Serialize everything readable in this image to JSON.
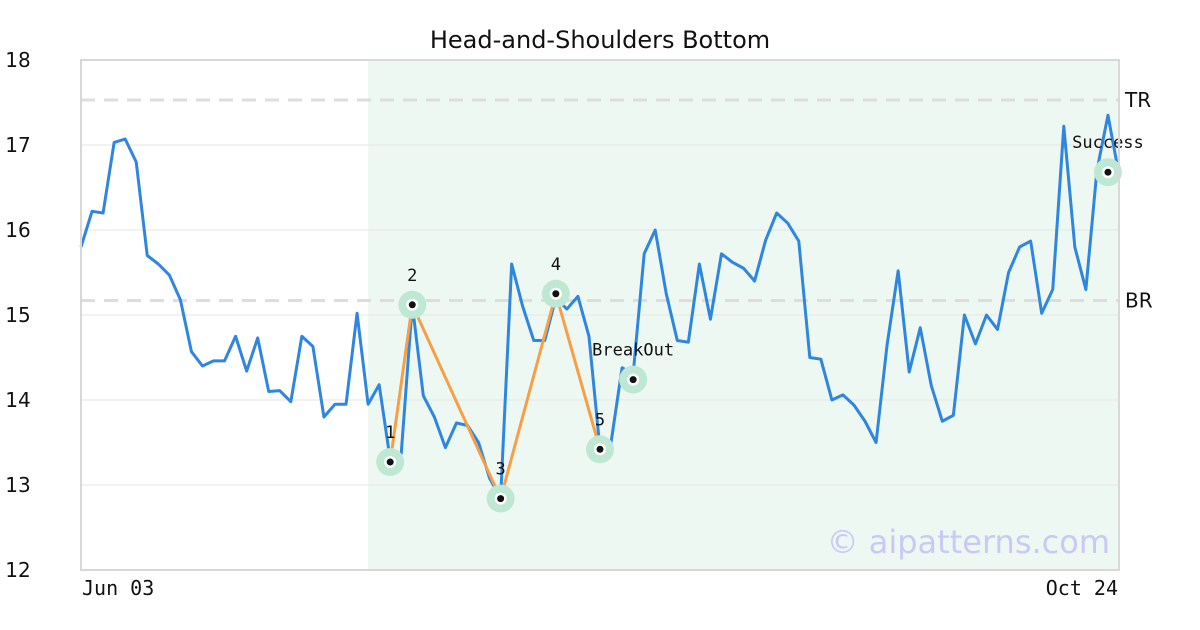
{
  "chart_data": {
    "type": "line",
    "title": "Head-and-Shoulders Bottom",
    "xlabel": "",
    "ylabel": "",
    "ylim": [
      12,
      18
    ],
    "yticks": [
      "12",
      "13",
      "14",
      "15",
      "16",
      "17",
      "18"
    ],
    "x_start_label": "Jun 03",
    "x_end_label": "Oct 24",
    "grid": true,
    "series": [
      {
        "color": "#2e86de",
        "values": [
          15.8,
          16.22,
          16.2,
          17.03,
          17.07,
          16.8,
          15.7,
          15.6,
          15.47,
          15.18,
          14.57,
          14.4,
          14.46,
          14.46,
          14.75,
          14.34,
          14.73,
          14.1,
          14.11,
          13.98,
          14.75,
          14.63,
          13.8,
          13.95,
          13.95,
          15.02,
          13.95,
          14.18,
          13.3,
          13.37,
          15.12,
          14.05,
          13.8,
          13.44,
          13.73,
          13.7,
          13.5,
          13.08,
          12.85,
          15.6,
          15.1,
          14.7,
          14.7,
          15.2,
          15.07,
          15.22,
          14.75,
          13.42,
          13.5,
          14.38,
          14.3,
          15.72,
          16.0,
          15.25,
          14.7,
          14.68,
          15.6,
          14.95,
          15.72,
          15.62,
          15.55,
          15.4,
          15.88,
          16.2,
          16.08,
          15.87,
          14.5,
          14.48,
          14.0,
          14.06,
          13.94,
          13.75,
          13.5,
          14.65,
          15.52,
          14.33,
          14.85,
          14.17,
          13.75,
          13.82,
          15.0,
          14.66,
          15.0,
          14.83,
          15.5,
          15.8,
          15.87,
          15.02,
          15.3,
          17.22,
          15.8,
          15.3,
          16.7,
          17.35,
          16.65
        ]
      },
      {
        "color": "#f5a046",
        "pattern_indices": [
          28,
          30,
          38,
          43,
          47
        ],
        "pattern_values": [
          13.27,
          15.12,
          12.84,
          15.25,
          13.42
        ]
      }
    ],
    "points": [
      {
        "label": "1",
        "index": 28,
        "value": 13.27
      },
      {
        "label": "2",
        "index": 30,
        "value": 15.12
      },
      {
        "label": "3",
        "index": 38,
        "value": 12.84
      },
      {
        "label": "4",
        "index": 43,
        "value": 15.25
      },
      {
        "label": "5",
        "index": 47,
        "value": 13.42
      },
      {
        "label": "BreakOut",
        "index": 50,
        "value": 14.24
      },
      {
        "label": "Success",
        "index": 93,
        "value": 16.68
      }
    ],
    "levels": [
      {
        "label": "TR",
        "value": 17.53
      },
      {
        "label": "BR",
        "value": 15.17
      }
    ],
    "highlight_range": [
      26,
      94
    ],
    "colors": {
      "line": "#2e86de",
      "pattern": "#f5a046",
      "highlight": "#eef8f3",
      "marker_halo": "#bfe8d4",
      "level": "#dddddd",
      "grid": "#e6e6e6"
    }
  },
  "watermark": "© aipatterns.com"
}
